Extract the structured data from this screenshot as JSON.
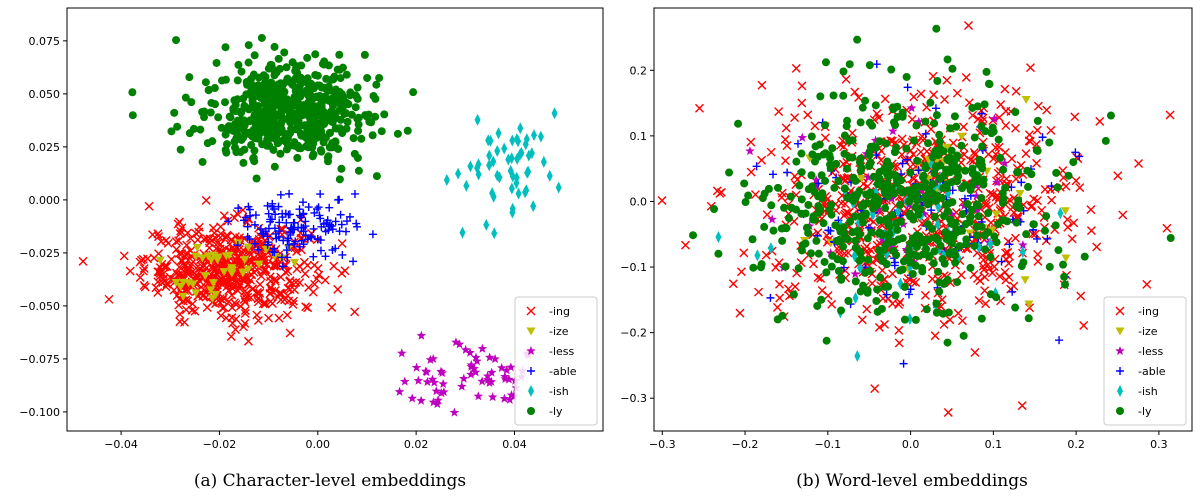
{
  "chart_data": [
    {
      "type": "scatter",
      "caption": "(a) Character-level embeddings",
      "xlim": [
        -0.051,
        0.058
      ],
      "ylim": [
        -0.109,
        0.0905
      ],
      "xticks": [
        -0.04,
        -0.02,
        0.0,
        0.02,
        0.04
      ],
      "xtick_labels": [
        "−0.04",
        "−0.02",
        "0.00",
        "0.02",
        "0.04"
      ],
      "yticks": [
        -0.1,
        -0.075,
        -0.05,
        -0.025,
        0.0,
        0.025,
        0.05,
        0.075
      ],
      "ytick_labels": [
        "−0.100",
        "−0.075",
        "−0.050",
        "−0.025",
        "0.000",
        "0.025",
        "0.050",
        "0.075"
      ],
      "grid": false,
      "legend_position": "bottom-right",
      "series": [
        {
          "name": "-ing",
          "marker": "x",
          "color": "#ff0000",
          "center": [
            -0.018,
            -0.033
          ],
          "spread": [
            0.0085,
            0.011
          ],
          "count": 520
        },
        {
          "name": "-ize",
          "marker": "triangle-down",
          "color": "#bfbf00",
          "center": [
            -0.02,
            -0.033
          ],
          "spread": [
            0.006,
            0.0065
          ],
          "count": 40
        },
        {
          "name": "-less",
          "marker": "star",
          "color": "#bf00bf",
          "center": [
            0.03,
            -0.083
          ],
          "spread": [
            0.007,
            0.0085
          ],
          "count": 65
        },
        {
          "name": "-able",
          "marker": "plus",
          "color": "#0000ff",
          "center": [
            -0.005,
            -0.013
          ],
          "spread": [
            0.006,
            0.0075
          ],
          "count": 130
        },
        {
          "name": "-ish",
          "marker": "thin-diamond",
          "color": "#00bfbf",
          "center": [
            0.039,
            0.016
          ],
          "spread": [
            0.0055,
            0.014
          ],
          "count": 55
        },
        {
          "name": "-ly",
          "marker": "circle",
          "color": "#008000",
          "center": [
            -0.006,
            0.041
          ],
          "spread": [
            0.0085,
            0.012
          ],
          "count": 560
        }
      ]
    },
    {
      "type": "scatter",
      "caption": "(b) Word-level embeddings",
      "xlim": [
        -0.31,
        0.34
      ],
      "ylim": [
        -0.35,
        0.295
      ],
      "xticks": [
        -0.3,
        -0.2,
        -0.1,
        0.0,
        0.1,
        0.2,
        0.3
      ],
      "xtick_labels": [
        "−0.3",
        "−0.2",
        "−0.1",
        "0.0",
        "0.1",
        "0.2",
        "0.3"
      ],
      "yticks": [
        -0.3,
        -0.2,
        -0.1,
        0.0,
        0.1,
        0.2
      ],
      "ytick_labels": [
        "−0.3",
        "−0.2",
        "−0.1",
        "0.0",
        "0.1",
        "0.2"
      ],
      "grid": false,
      "legend_position": "bottom-right",
      "series": [
        {
          "name": "-ing",
          "marker": "x",
          "color": "#ff0000",
          "center": [
            0.01,
            -0.01
          ],
          "spread": [
            0.1,
            0.085
          ],
          "count": 650
        },
        {
          "name": "-ize",
          "marker": "triangle-down",
          "color": "#bfbf00",
          "center": [
            0.02,
            0.0
          ],
          "spread": [
            0.08,
            0.07
          ],
          "count": 40
        },
        {
          "name": "-less",
          "marker": "star",
          "color": "#bf00bf",
          "center": [
            0.0,
            -0.02
          ],
          "spread": [
            0.08,
            0.07
          ],
          "count": 50
        },
        {
          "name": "-able",
          "marker": "plus",
          "color": "#0000ff",
          "center": [
            0.0,
            0.0
          ],
          "spread": [
            0.09,
            0.075
          ],
          "count": 100
        },
        {
          "name": "-ish",
          "marker": "thin-diamond",
          "color": "#00bfbf",
          "center": [
            0.0,
            -0.02
          ],
          "spread": [
            0.08,
            0.07
          ],
          "count": 50
        },
        {
          "name": "-ly",
          "marker": "circle",
          "color": "#008000",
          "center": [
            -0.01,
            0.0
          ],
          "spread": [
            0.09,
            0.08
          ],
          "count": 560
        }
      ]
    }
  ]
}
